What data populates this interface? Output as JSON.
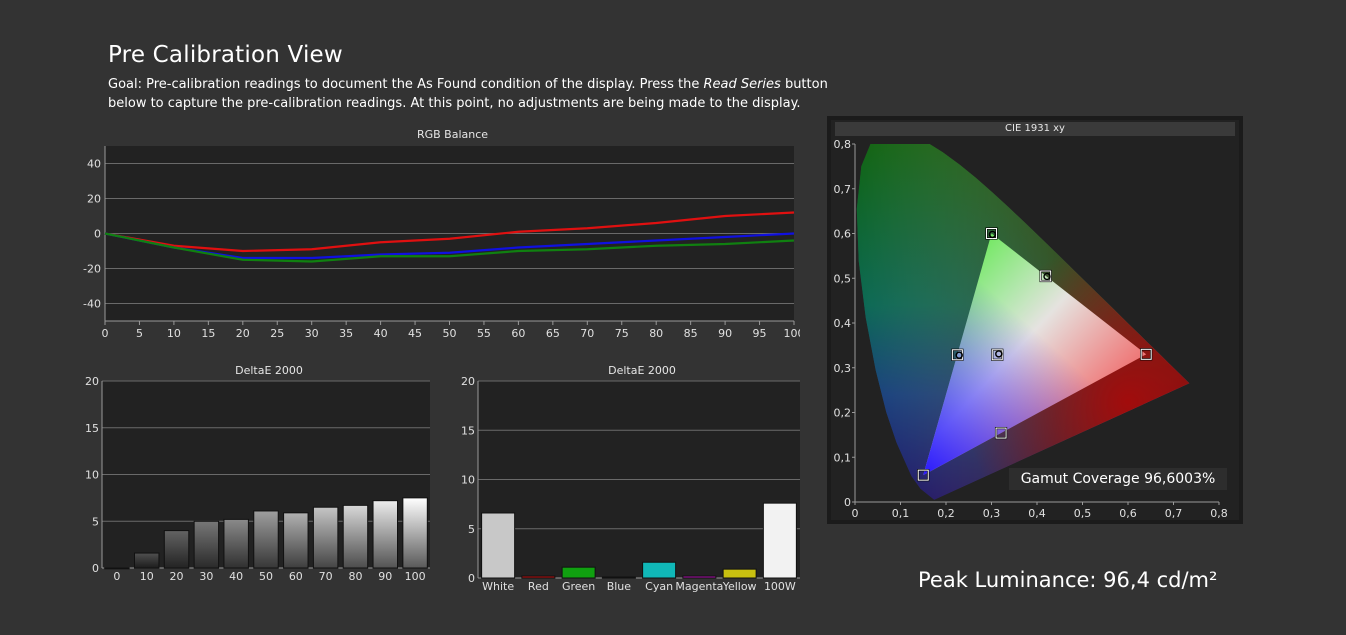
{
  "header": {
    "title": "Pre Calibration View",
    "goal_1": "Goal: Pre-calibration readings to document the As Found condition of the display. Press the ",
    "goal_italic": "Read Series",
    "goal_2": " button below to capture the pre-calibration readings. At this point, no adjustments are being made to the display."
  },
  "colors": {
    "background": "#333333",
    "plot_bg": "#222222",
    "red_series": "#e01010",
    "green_series": "#108010",
    "blue_series": "#1010e0"
  },
  "chart_data": [
    {
      "type": "line",
      "title": "RGB Balance",
      "x": [
        0,
        10,
        20,
        30,
        40,
        50,
        60,
        70,
        80,
        90,
        100
      ],
      "xticks": [
        "0",
        "5",
        "10",
        "15",
        "20",
        "25",
        "30",
        "35",
        "40",
        "45",
        "50",
        "55",
        "60",
        "65",
        "70",
        "75",
        "80",
        "85",
        "90",
        "95",
        "100"
      ],
      "yticks": [
        "40",
        "20",
        "0",
        "-20",
        "-40"
      ],
      "ylim": [
        -50,
        50
      ],
      "xlim": [
        0,
        100
      ],
      "grid": true,
      "series": [
        {
          "color": "#e01010",
          "values": [
            0,
            -7,
            -10,
            -9,
            -5,
            -3,
            1,
            3,
            6,
            10,
            12
          ]
        },
        {
          "color": "#1010e0",
          "values": [
            0,
            -8,
            -14,
            -14,
            -12,
            -11,
            -8,
            -6,
            -4,
            -2,
            0
          ]
        },
        {
          "color": "#108010",
          "values": [
            0,
            -8,
            -15,
            -16,
            -13,
            -13,
            -10,
            -9,
            -7,
            -6,
            -4
          ]
        }
      ]
    },
    {
      "type": "bar",
      "title": "DeltaE 2000",
      "categories": [
        "0",
        "10",
        "20",
        "30",
        "40",
        "50",
        "60",
        "70",
        "80",
        "90",
        "100"
      ],
      "values": [
        0,
        1.6,
        4.0,
        5.0,
        5.2,
        6.1,
        5.9,
        6.5,
        6.7,
        7.2,
        7.5
      ],
      "yticks": [
        "20",
        "15",
        "10",
        "5",
        "0"
      ],
      "ylim": [
        0,
        20
      ],
      "grid": true
    },
    {
      "type": "bar",
      "title": "DeltaE 2000",
      "categories": [
        "White",
        "Red",
        "Green",
        "Blue",
        "Cyan",
        "Magenta",
        "Yellow",
        "100W"
      ],
      "values": [
        6.6,
        0.2,
        1.1,
        0.1,
        1.6,
        0.2,
        0.9,
        7.6
      ],
      "colors": [
        "#c8c8c8",
        "#c01010",
        "#10a010",
        "#1010c0",
        "#10b8b8",
        "#b010b0",
        "#c8c010",
        "#f2f2f2"
      ],
      "yticks": [
        "20",
        "15",
        "10",
        "5",
        "0"
      ],
      "ylim": [
        0,
        20
      ],
      "grid": true
    },
    {
      "type": "scatter",
      "title": "CIE 1931 xy",
      "xticks": [
        "0",
        "0,1",
        "0,2",
        "0,3",
        "0,4",
        "0,5",
        "0,6",
        "0,7",
        "0,8"
      ],
      "yticks": [
        "0,8",
        "0,7",
        "0,6",
        "0,5",
        "0,4",
        "0,3",
        "0,2",
        "0,1",
        "0"
      ],
      "xlim": [
        0,
        0.8
      ],
      "ylim": [
        0,
        0.8
      ],
      "targets": [
        {
          "x": 0.64,
          "y": 0.33
        },
        {
          "x": 0.3,
          "y": 0.6
        },
        {
          "x": 0.15,
          "y": 0.06
        },
        {
          "x": 0.225,
          "y": 0.329
        },
        {
          "x": 0.321,
          "y": 0.154
        },
        {
          "x": 0.419,
          "y": 0.505
        },
        {
          "x": 0.3127,
          "y": 0.329
        }
      ],
      "measured": [
        {
          "x": 0.302,
          "y": 0.598
        },
        {
          "x": 0.229,
          "y": 0.328
        },
        {
          "x": 0.422,
          "y": 0.504
        },
        {
          "x": 0.316,
          "y": 0.331
        }
      ]
    }
  ],
  "cie": {
    "gamut_label": "Gamut Coverage 96,6003%"
  },
  "footer": {
    "peak_luminance": "Peak Luminance: 96,4 cd/m²"
  }
}
